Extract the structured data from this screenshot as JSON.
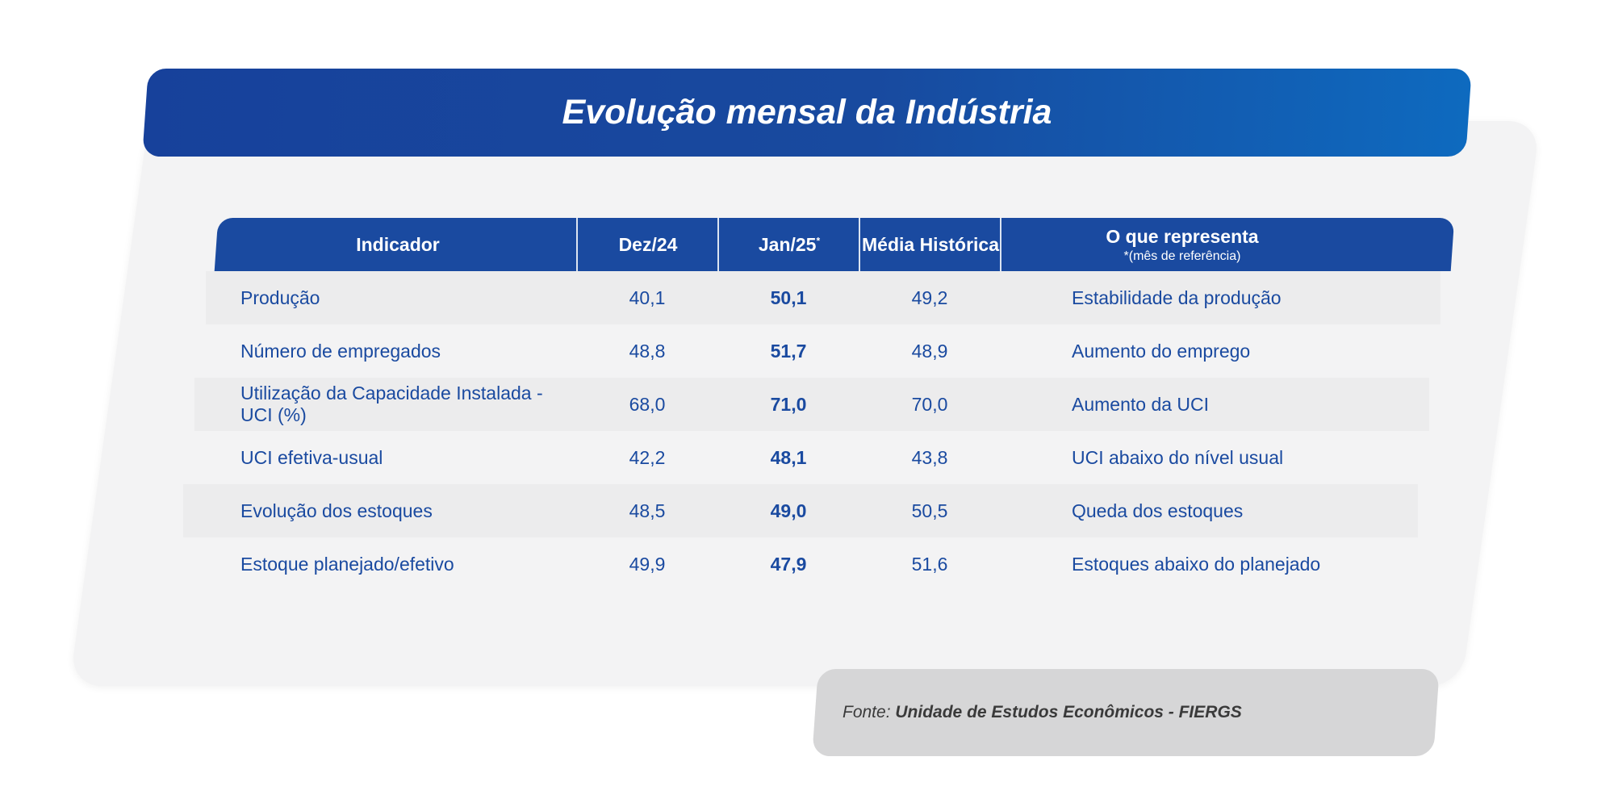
{
  "title": "Evolução mensal da Indústria",
  "table": {
    "headers": {
      "indicador": "Indicador",
      "dez24": "Dez/24",
      "jan25": "Jan/25",
      "jan25_mark": "*",
      "media": "Média Histórica",
      "representa": "O que representa",
      "representa_note": "*(mês de referência)"
    },
    "rows": [
      {
        "indicador": "Produção",
        "dez24": "40,1",
        "jan25": "50,1",
        "media": "49,2",
        "representa": "Estabilidade da produção"
      },
      {
        "indicador": "Número de empregados",
        "dez24": "48,8",
        "jan25": "51,7",
        "media": "48,9",
        "representa": "Aumento do emprego"
      },
      {
        "indicador": "Utilização da Capacidade Instalada - UCI (%)",
        "dez24": "68,0",
        "jan25": "71,0",
        "media": "70,0",
        "representa": "Aumento da UCI"
      },
      {
        "indicador": "UCI efetiva-usual",
        "dez24": "42,2",
        "jan25": "48,1",
        "media": "43,8",
        "representa": "UCI abaixo do nível usual"
      },
      {
        "indicador": "Evolução dos estoques",
        "dez24": "48,5",
        "jan25": "49,0",
        "media": "50,5",
        "representa": "Queda dos estoques"
      },
      {
        "indicador": "Estoque planejado/efetivo",
        "dez24": "49,9",
        "jan25": "47,9",
        "media": "51,6",
        "representa": "Estoques abaixo do planejado"
      }
    ]
  },
  "source": {
    "label": "Fonte:",
    "name": "Unidade de Estudos Econômicos - FIERGS"
  },
  "colors": {
    "primary_blue": "#1a4aa0",
    "title_gradient_end": "#0e6abf",
    "panel_gray": "#f3f3f4",
    "source_gray": "#d6d6d7"
  }
}
